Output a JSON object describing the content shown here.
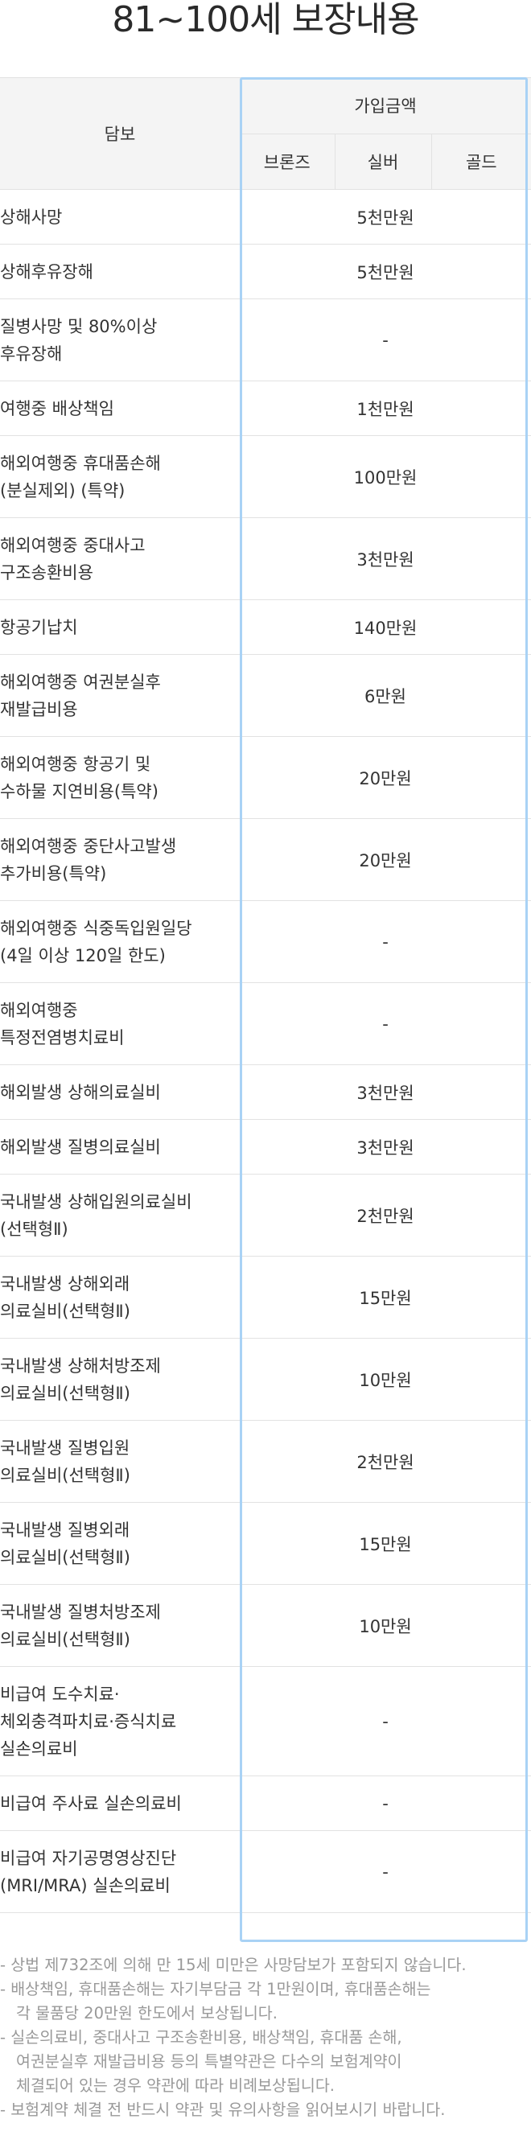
{
  "title": "81~100세 보장내용",
  "table": {
    "item_header": "담보",
    "group_header": "가입금액",
    "plans": [
      "브론즈",
      "실버",
      "골드"
    ],
    "rows": [
      {
        "item": "상해사망",
        "amount": "5천만원"
      },
      {
        "item": "상해후유장해",
        "amount": "5천만원"
      },
      {
        "item": "질병사망 및 80%이상\n후유장해",
        "amount": "-"
      },
      {
        "item": "여행중 배상책임",
        "amount": "1천만원"
      },
      {
        "item": "해외여행중 휴대품손해\n(분실제외) (특약)",
        "amount": "100만원"
      },
      {
        "item": "해외여행중 중대사고\n구조송환비용",
        "amount": "3천만원"
      },
      {
        "item": "항공기납치",
        "amount": "140만원"
      },
      {
        "item": "해외여행중 여권분실후\n재발급비용",
        "amount": "6만원"
      },
      {
        "item": "해외여행중 항공기 및\n수하물 지연비용(특약)",
        "amount": "20만원"
      },
      {
        "item": "해외여행중 중단사고발생\n추가비용(특약)",
        "amount": "20만원"
      },
      {
        "item": "해외여행중 식중독입원일당\n(4일 이상 120일 한도)",
        "amount": "-"
      },
      {
        "item": "해외여행중\n특정전염병치료비",
        "amount": "-"
      },
      {
        "item": "해외발생 상해의료실비",
        "amount": "3천만원"
      },
      {
        "item": "해외발생 질병의료실비",
        "amount": "3천만원"
      },
      {
        "item": "국내발생 상해입원의료실비\n(선택형Ⅱ)",
        "amount": "2천만원"
      },
      {
        "item": "국내발생 상해외래\n의료실비(선택형Ⅱ)",
        "amount": "15만원"
      },
      {
        "item": "국내발생 상해처방조제\n의료실비(선택형Ⅱ)",
        "amount": "10만원"
      },
      {
        "item": "국내발생 질병입원\n의료실비(선택형Ⅱ)",
        "amount": "2천만원"
      },
      {
        "item": "국내발생 질병외래\n의료실비(선택형Ⅱ)",
        "amount": "15만원"
      },
      {
        "item": "국내발생 질병처방조제\n의료실비(선택형Ⅱ)",
        "amount": "10만원"
      },
      {
        "item": "비급여 도수치료·\n체외충격파치료·증식치료\n실손의료비",
        "amount": "-"
      },
      {
        "item": "비급여 주사료 실손의료비",
        "amount": "-"
      },
      {
        "item": "비급여 자기공명영상진단\n(MRI/MRA) 실손의료비",
        "amount": "-"
      }
    ]
  },
  "notes": [
    "- 상법 제732조에 의해 만 15세 미만은 사망담보가 포함되지 않습니다.",
    "- 배상책임, 휴대품손해는 자기부담금 각 1만원이며, 휴대품손해는\n각 물품당 20만원 한도에서 보상됩니다.",
    "- 실손의료비, 중대사고 구조송환비용, 배상책임, 휴대품 손해,\n여권분실후 재발급비용 등의 특별약관은 다수의 보험계약이\n체결되어 있는 경우 약관에 따라 비례보상됩니다.",
    "- 보험계약 체결 전 반드시 약관 및 유의사항을 읽어보시기 바랍니다."
  ]
}
